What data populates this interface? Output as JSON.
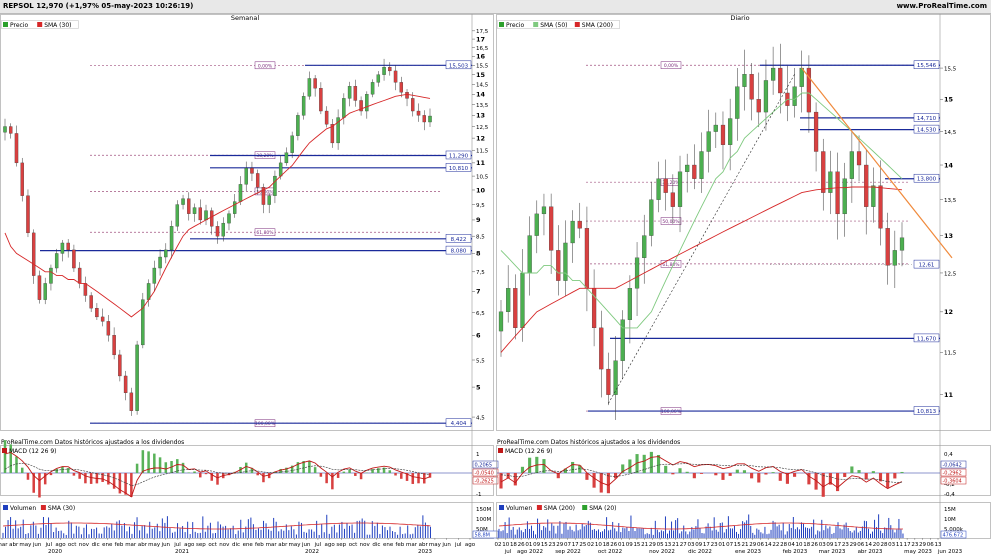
{
  "header": {
    "left_text": "REPSOL 12,970 (+1,97% 05-may-2023 10:26:19)",
    "right_text": "www.ProRealTime.com"
  },
  "panels": [
    {
      "title": "Semanal",
      "legend": [
        {
          "label": "Precio",
          "color": "#2ca02c"
        },
        {
          "label": "SMA (30)",
          "color": "#d62728"
        }
      ],
      "disclaimer": "ProRealTime.com Datos históricos ajustados a los dividendos",
      "macd_label": "MACD (12 26 9)",
      "macd_values": [
        "0,2065",
        "-0,0540",
        "-0,2625"
      ],
      "macd_ticks": [
        "1",
        "0",
        "-1"
      ],
      "volume_legend": [
        {
          "label": "Volumen",
          "color": "#1f3fbf"
        },
        {
          "label": "SMA (30)",
          "color": "#d62728"
        }
      ],
      "volume_ticks": [
        "150M",
        "100M",
        "50M"
      ],
      "volume_value": "58,8M",
      "x_ticks": [
        "mar",
        "abr",
        "may",
        "jun",
        "jul",
        "ago",
        "oct",
        "nov",
        "dic",
        "ene",
        "feb",
        "mar",
        "abr",
        "may",
        "jun",
        "jul",
        "ago",
        "sep",
        "oct",
        "nov",
        "dic",
        "ene",
        "feb",
        "mar",
        "abr",
        "may",
        "jun",
        "jul",
        "ago",
        "sep",
        "oct",
        "nov",
        "dic",
        "ene",
        "feb",
        "mar",
        "abr",
        "may",
        "jun",
        "jul",
        "ago"
      ],
      "year_labels": [
        "2020",
        "2021",
        "2022",
        "2023"
      ]
    },
    {
      "title": "Diario",
      "legend": [
        {
          "label": "Precio",
          "color": "#2ca02c"
        },
        {
          "label": "SMA (50)",
          "color": "#7fc97f"
        },
        {
          "label": "SMA (200)",
          "color": "#d62728"
        }
      ],
      "disclaimer": "ProRealTime.com Datos históricos ajustados a los dividendos",
      "macd_label": "MACD (12 26 9)",
      "macd_values": [
        "-0,0642",
        "-0,2962",
        "-0,3604"
      ],
      "macd_ticks": [
        "0,4",
        "0,2",
        "0",
        "-0,2",
        "-0,4"
      ],
      "volume_legend": [
        {
          "label": "Volumen",
          "color": "#1f3fbf"
        },
        {
          "label": "SMA (200)",
          "color": "#d62728"
        },
        {
          "label": "SMA (20)",
          "color": "#2ca02c"
        }
      ],
      "volume_ticks": [
        "15M",
        "10M",
        "5.000k"
      ],
      "volume_value": "476.672",
      "x_ticks": [
        "02",
        "10",
        "18",
        "26",
        "01",
        "09",
        "15",
        "23",
        "29",
        "07",
        "17",
        "25",
        "02",
        "10",
        "18",
        "26",
        "01",
        "09",
        "15",
        "21",
        "29",
        "05",
        "13",
        "21",
        "27",
        "03",
        "09",
        "17",
        "23",
        "01",
        "07",
        "15",
        "21",
        "29",
        "06",
        "14",
        "22",
        "28",
        "04",
        "10",
        "18",
        "26",
        "03",
        "09",
        "17",
        "23",
        "29",
        "06",
        "14",
        "20",
        "28",
        "03",
        "11",
        "17",
        "23",
        "29",
        "06",
        "13"
      ],
      "month_labels": [
        "jul",
        "ago 2022",
        "sep 2022",
        "oct 2022",
        "nov 2022",
        "dic 2022",
        "ene 2023",
        "feb 2023",
        "mar 2023",
        "abr 2023",
        "may 2023",
        "jun 2023"
      ]
    }
  ],
  "chart_data": [
    {
      "type": "line",
      "title": "Semanal",
      "y_scale": "log",
      "ylim": [
        4.3,
        17.8
      ],
      "y_ticks": [
        4.5,
        5,
        5.5,
        6,
        6.5,
        7,
        7.5,
        8,
        8.5,
        9,
        9.5,
        10,
        10.5,
        11,
        11.5,
        12,
        12.5,
        13,
        13.5,
        14,
        14.5,
        15,
        15.5,
        16,
        16.5,
        17,
        17.5
      ],
      "y_tick_labels": [
        "4,5",
        "5",
        "5,5",
        "6",
        "6,5",
        "7",
        "7,5",
        "8",
        "8,5",
        "9",
        "9,5",
        "10",
        "10,5",
        "11",
        "11,5",
        "12",
        "12,5",
        "13",
        "13,5",
        "14",
        "14,5",
        "15",
        "15,5",
        "16",
        "16,5",
        "17",
        "17,5"
      ],
      "series": [
        {
          "name": "Precio",
          "values": [
            12.5,
            12.2,
            11.0,
            9.8,
            8.6,
            7.4,
            6.8,
            7.2,
            7.6,
            8.0,
            8.3,
            8.1,
            7.6,
            7.2,
            6.9,
            6.6,
            6.4,
            6.3,
            6.0,
            5.6,
            5.2,
            4.9,
            4.6,
            5.8,
            6.8,
            7.2,
            7.6,
            7.9,
            8.1,
            8.8,
            9.5,
            9.7,
            9.2,
            9.4,
            9.0,
            9.3,
            8.8,
            8.5,
            8.9,
            9.2,
            9.6,
            10.2,
            10.8,
            10.6,
            10.1,
            9.5,
            9.8,
            10.5,
            11.0,
            11.4,
            12.1,
            13.0,
            13.9,
            14.8,
            14.3,
            13.2,
            12.6,
            11.8,
            12.9,
            13.8,
            14.4,
            13.7,
            13.2,
            14.0,
            14.6,
            15.0,
            15.4,
            15.2,
            14.6,
            14.1,
            13.8,
            13.2,
            13.0,
            12.7,
            12.97
          ]
        },
        {
          "name": "SMA (30)",
          "values": [
            8.6,
            8.2,
            8.0,
            7.9,
            7.8,
            7.7,
            7.6,
            7.5,
            7.5,
            7.4,
            7.4,
            7.3,
            7.3,
            7.2,
            7.2,
            7.1,
            7.0,
            6.9,
            6.8,
            6.7,
            6.6,
            6.5,
            6.4,
            6.5,
            6.6,
            6.8,
            7.0,
            7.3,
            7.6,
            7.9,
            8.2,
            8.5,
            8.7,
            8.8,
            8.9,
            9.0,
            9.1,
            9.2,
            9.3,
            9.4,
            9.5,
            9.6,
            9.7,
            9.8,
            9.9,
            10.0,
            10.1,
            10.3,
            10.5,
            10.7,
            10.9,
            11.2,
            11.5,
            11.8,
            12.0,
            12.2,
            12.4,
            12.5,
            12.7,
            12.9,
            13.1,
            13.2,
            13.3,
            13.4,
            13.5,
            13.6,
            13.7,
            13.8,
            13.9,
            13.95,
            14.0,
            13.95,
            13.9,
            13.85,
            13.8
          ]
        }
      ],
      "levels": [
        {
          "value": 15.503,
          "label": "15,503"
        },
        {
          "value": 11.29,
          "label": "11,290"
        },
        {
          "value": 10.81,
          "label": "10,810"
        },
        {
          "value": 8.422,
          "label": "8,422"
        },
        {
          "value": 8.08,
          "label": "8,080"
        },
        {
          "value": 4.404,
          "label": "4,404"
        }
      ],
      "fib_levels": [
        {
          "value": 15.503,
          "label": "0,00%"
        },
        {
          "value": 11.3,
          "label": "38,20%"
        },
        {
          "value": 9.95,
          "label": "50,00%"
        },
        {
          "value": 8.62,
          "label": "61,80%"
        },
        {
          "value": 4.404,
          "label": "100,00%"
        }
      ]
    },
    {
      "type": "line",
      "title": "Diario",
      "y_scale": "log",
      "ylim": [
        10.6,
        16.2
      ],
      "y_ticks": [
        11,
        11.5,
        12,
        12.5,
        13,
        13.5,
        14,
        14.5,
        15,
        15.5
      ],
      "y_tick_labels": [
        "11",
        "11,5",
        "12",
        "12,5",
        "13",
        "13,5",
        "14",
        "14,5",
        "15",
        "15,5"
      ],
      "series": [
        {
          "name": "Precio",
          "values": [
            12.0,
            12.3,
            11.8,
            12.5,
            13.0,
            13.3,
            13.4,
            12.8,
            12.4,
            12.9,
            13.2,
            13.1,
            12.3,
            11.8,
            11.3,
            11.0,
            11.4,
            11.9,
            12.3,
            12.7,
            13.0,
            13.5,
            13.8,
            13.6,
            13.4,
            13.9,
            14.0,
            13.8,
            14.2,
            14.5,
            14.6,
            14.3,
            14.7,
            15.2,
            15.4,
            15.0,
            14.8,
            15.3,
            15.5,
            15.1,
            14.9,
            15.2,
            15.5,
            14.8,
            14.2,
            13.6,
            13.9,
            13.3,
            13.8,
            14.2,
            14.0,
            13.4,
            13.7,
            13.1,
            12.6,
            12.8,
            12.97
          ]
        },
        {
          "name": "SMA (50)",
          "values": [
            12.8,
            12.7,
            12.6,
            12.5,
            12.5,
            12.5,
            12.6,
            12.6,
            12.5,
            12.5,
            12.4,
            12.4,
            12.3,
            12.2,
            12.1,
            12.0,
            11.9,
            11.8,
            11.8,
            11.8,
            11.9,
            12.0,
            12.2,
            12.4,
            12.6,
            12.8,
            13.0,
            13.2,
            13.4,
            13.6,
            13.8,
            13.9,
            14.1,
            14.2,
            14.4,
            14.5,
            14.6,
            14.7,
            14.8,
            14.9,
            15.0,
            15.0,
            15.1,
            15.1,
            15.0,
            14.9,
            14.8,
            14.7,
            14.6,
            14.5,
            14.4,
            14.3,
            14.2,
            14.1,
            14.0,
            13.9,
            13.8
          ]
        },
        {
          "name": "SMA (200)",
          "values": [
            11.5,
            11.6,
            11.7,
            11.8,
            11.9,
            12.0,
            12.05,
            12.1,
            12.15,
            12.2,
            12.25,
            12.3,
            12.3,
            12.3,
            12.3,
            12.3,
            12.3,
            12.35,
            12.4,
            12.45,
            12.5,
            12.55,
            12.6,
            12.65,
            12.7,
            12.75,
            12.8,
            12.85,
            12.9,
            12.95,
            13.0,
            13.05,
            13.1,
            13.15,
            13.2,
            13.25,
            13.3,
            13.35,
            13.4,
            13.45,
            13.5,
            13.55,
            13.6,
            13.62,
            13.64,
            13.65,
            13.66,
            13.67,
            13.67,
            13.68,
            13.68,
            13.68,
            13.68,
            13.67,
            13.66,
            13.65,
            13.64
          ]
        }
      ],
      "levels": [
        {
          "value": 15.546,
          "label": "15,546"
        },
        {
          "value": 14.71,
          "label": "14,710"
        },
        {
          "value": 14.53,
          "label": "14,530"
        },
        {
          "value": 13.8,
          "label": "13,800"
        },
        {
          "value": 12.61,
          "label": "12,61"
        },
        {
          "value": 11.67,
          "label": "11,670"
        },
        {
          "value": 10.813,
          "label": "10,813"
        }
      ],
      "fib_levels": [
        {
          "value": 15.546,
          "label": "0,00%"
        },
        {
          "value": 13.75,
          "label": "38,20%"
        },
        {
          "value": 13.2,
          "label": "50,00%"
        },
        {
          "value": 12.62,
          "label": "61,80%"
        },
        {
          "value": 10.813,
          "label": "100,00%"
        }
      ]
    }
  ]
}
